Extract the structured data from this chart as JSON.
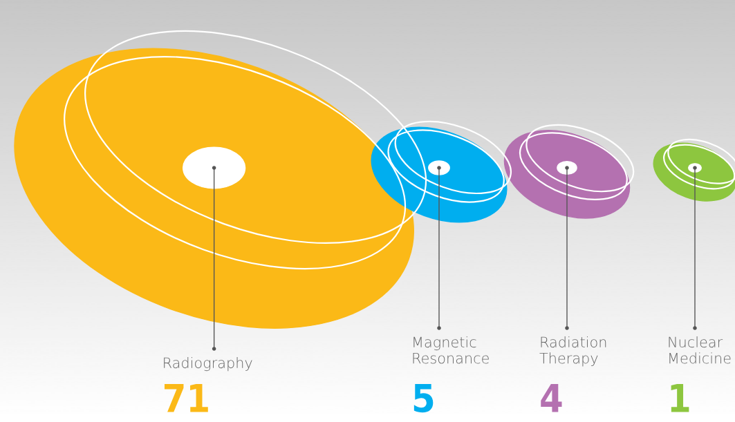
{
  "chart_data": {
    "type": "other",
    "categories": [
      "Radiography",
      "Magnetic\nResonance",
      "Radiation\nTherapy",
      "Nuclear\nMedicine"
    ],
    "values": [
      71,
      5,
      4,
      1
    ],
    "value_labels": [
      "71",
      "5",
      "4",
      "1"
    ],
    "colors": [
      "#fbb917",
      "#00aeef",
      "#b471b0",
      "#8dc63f"
    ]
  }
}
